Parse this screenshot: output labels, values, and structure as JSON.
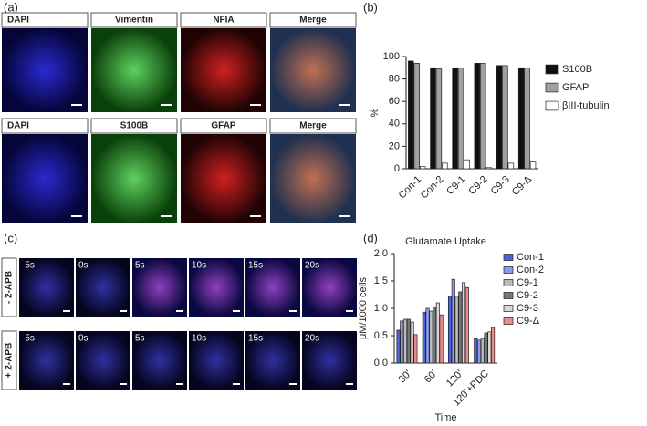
{
  "panels": {
    "a": {
      "label": "(a)",
      "row1": [
        "DAPI",
        "Vimentin",
        "NFIA",
        "Merge"
      ],
      "row2": [
        "DAPI",
        "S100B",
        "GFAP",
        "Merge"
      ]
    },
    "b": {
      "label": "(b)"
    },
    "c": {
      "label": "(c)",
      "rows": [
        {
          "label": "- 2-APB",
          "times": [
            "-5s",
            "0s",
            "5s",
            "10s",
            "15s",
            "20s"
          ]
        },
        {
          "label": "+ 2-APB",
          "times": [
            "-5s",
            "0s",
            "5s",
            "10s",
            "15s",
            "20s"
          ]
        }
      ]
    },
    "d": {
      "label": "(d)"
    }
  },
  "chart_data": [
    {
      "type": "bar",
      "ylabel": "%",
      "categories": [
        "Con-1",
        "Con-2",
        "C9-1",
        "C9-2",
        "C9-3",
        "C9-Δ"
      ],
      "category_colors": [
        "#2b3fd6",
        "#2b3fd6",
        "#111111",
        "#111111",
        "#111111",
        "#d02020"
      ],
      "series": [
        {
          "name": "S100B",
          "color": "#111111",
          "values": [
            96,
            90,
            90,
            94,
            92,
            90
          ]
        },
        {
          "name": "GFAP",
          "color": "#a0a0a0",
          "values": [
            94,
            89,
            90,
            94,
            92,
            90
          ]
        },
        {
          "name": "βIII-tubulin",
          "color": "#ffffff",
          "values": [
            2,
            5,
            8,
            1,
            5,
            6
          ]
        }
      ],
      "ylim": [
        0,
        100
      ],
      "yticks": [
        0,
        20,
        40,
        60,
        80,
        100
      ]
    },
    {
      "type": "bar",
      "title": "Glutamate Uptake",
      "ylabel": "μM/1000 cells",
      "xlabel": "Time",
      "categories": [
        "30'",
        "60'",
        "120'",
        "120'+PDC"
      ],
      "series": [
        {
          "name": "Con-1",
          "color": "#4a63e0",
          "legend_color": "#2b3fd6",
          "values": [
            0.6,
            0.93,
            1.22,
            0.45
          ]
        },
        {
          "name": "Con-2",
          "color": "#8a9cf0",
          "legend_color": "#2b3fd6",
          "values": [
            0.77,
            1.0,
            1.53,
            0.42
          ]
        },
        {
          "name": "C9-1",
          "color": "#bbbbbb",
          "legend_color": "#111111",
          "values": [
            0.8,
            0.95,
            1.22,
            0.45
          ]
        },
        {
          "name": "C9-2",
          "color": "#777777",
          "legend_color": "#111111",
          "values": [
            0.8,
            1.02,
            1.3,
            0.55
          ]
        },
        {
          "name": "C9-3",
          "color": "#d8d8d8",
          "legend_color": "#111111",
          "values": [
            0.75,
            1.1,
            1.47,
            0.57
          ]
        },
        {
          "name": "C9-Δ",
          "color": "#f08a8a",
          "legend_color": "#d02020",
          "values": [
            0.52,
            0.88,
            1.38,
            0.65
          ]
        }
      ],
      "ylim": [
        0,
        2.0
      ],
      "yticks": [
        {
          "value": 0,
          "label": "0.0"
        },
        0.5,
        {
          "value": 1,
          "label": "1.0"
        },
        1.5,
        {
          "value": 2,
          "label": "2.0"
        }
      ]
    }
  ]
}
